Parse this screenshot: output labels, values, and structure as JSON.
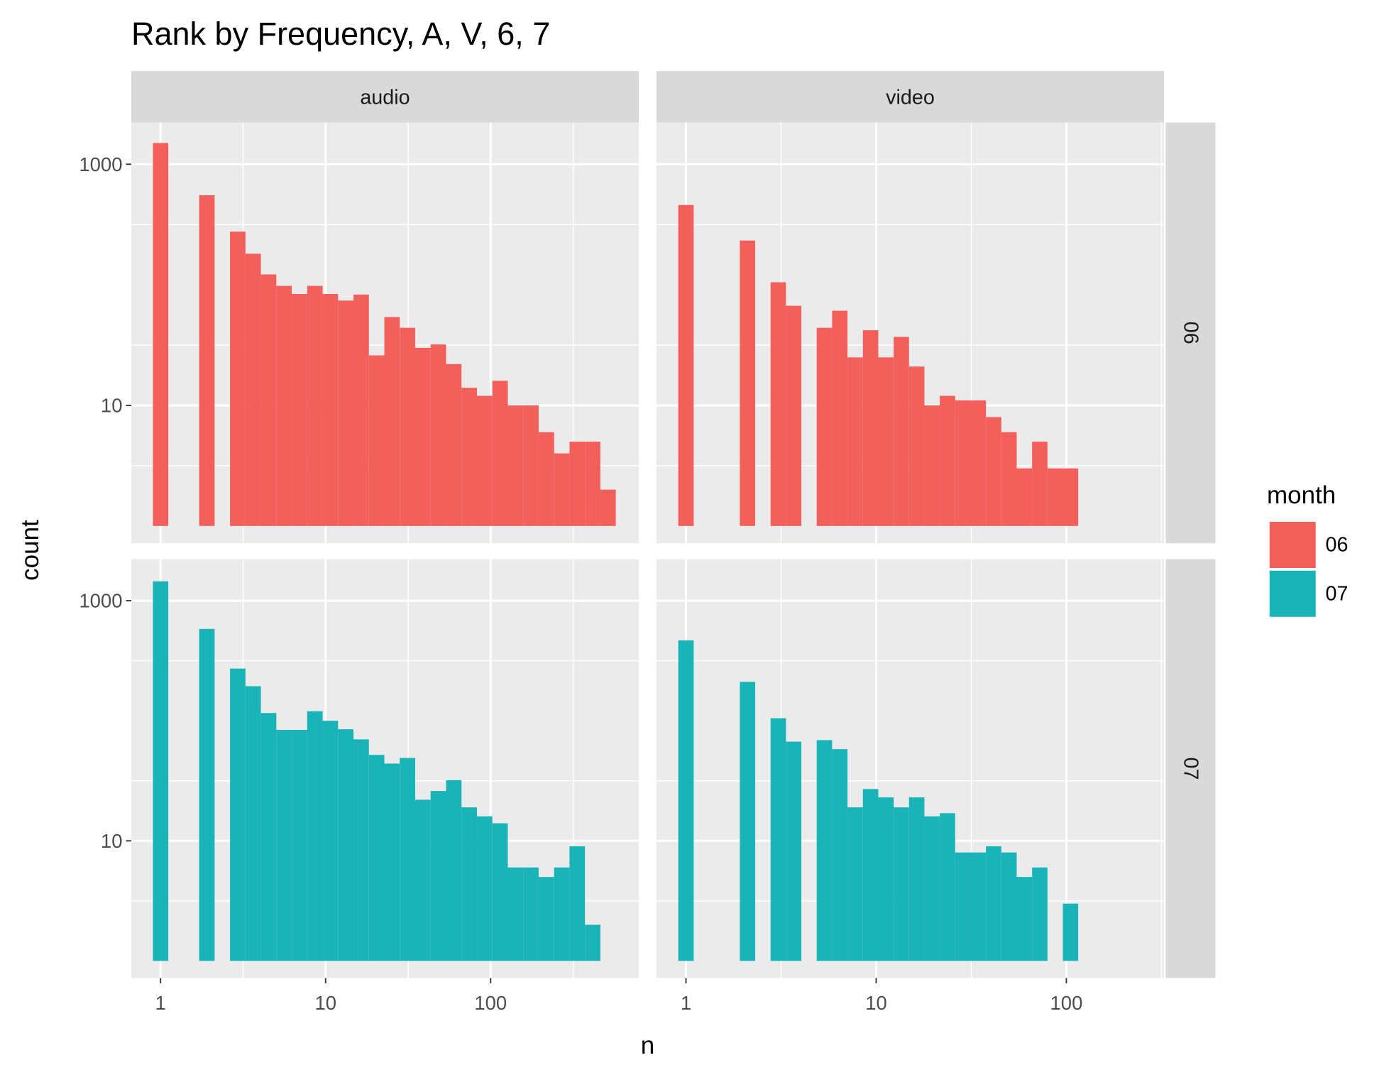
{
  "figure": {
    "title": "Rank by Frequency, A, V, 6, 7",
    "x_label": "n",
    "y_label": "count",
    "columns": [
      "audio",
      "video"
    ],
    "rows": [
      "06",
      "07"
    ],
    "legend": {
      "title": "month",
      "position": "right",
      "entries": [
        {
          "name": "06",
          "color": "#f35f5b"
        },
        {
          "name": "07",
          "color": "#19b3b8"
        }
      ]
    }
  },
  "chart_data": [
    {
      "type": "histogram",
      "x_scale": "log",
      "y_scale": "log",
      "grid": true,
      "color": "#f35f5b",
      "bins": [
        0.899,
        1.114,
        1.382,
        1.714,
        2.126,
        2.636,
        3.269,
        4.055,
        5.029,
        6.237,
        7.735,
        9.594,
        11.9,
        14.76,
        18.3,
        22.7,
        28.15,
        34.91,
        43.3,
        53.7,
        66.6,
        82.6,
        102.4,
        127.1,
        157.6,
        195.4,
        242.4,
        300.6,
        372.8,
        462.4,
        573.5
      ],
      "values": [
        1500,
        0,
        0,
        553,
        0,
        276,
        181,
        122,
        98,
        84,
        98,
        84,
        74,
        83,
        26,
        54,
        44,
        30,
        32,
        22,
        14,
        12,
        16,
        10,
        10,
        6,
        4,
        5,
        5,
        2
      ],
      "xlim": [
        0.665,
        790
      ],
      "ylim": [
        0.72,
        2220
      ],
      "xticks": [
        1,
        10,
        100
      ],
      "yticks": [
        10,
        1000
      ]
    },
    {
      "type": "histogram",
      "x_scale": "log",
      "y_scale": "log",
      "grid": true,
      "color": "#f35f5b",
      "bins": [
        0.911,
        1.098,
        1.322,
        1.593,
        1.919,
        2.312,
        2.785,
        3.355,
        4.042,
        4.869,
        5.866,
        7.067,
        8.513,
        10.26,
        12.36,
        14.88,
        17.93,
        21.6,
        26.02,
        31.35,
        37.77,
        45.5,
        54.81,
        66.03,
        79.55,
        95.83,
        115.4,
        139.1,
        167.5,
        201.8,
        243.1
      ],
      "values": [
        459,
        0,
        0,
        0,
        233,
        0,
        105,
        67,
        0,
        44,
        61,
        25,
        42,
        25,
        37,
        21,
        10,
        12,
        11,
        11,
        8,
        6,
        3,
        5,
        3,
        3,
        0,
        0,
        0,
        0
      ],
      "xlim": [
        0.7,
        326
      ],
      "ylim": [
        0.72,
        2220
      ],
      "xticks": [
        1,
        10,
        100
      ],
      "yticks": [
        10,
        1000
      ]
    },
    {
      "type": "histogram",
      "x_scale": "log",
      "y_scale": "log",
      "grid": true,
      "color": "#19b3b8",
      "bins": [
        0.899,
        1.114,
        1.382,
        1.714,
        2.126,
        2.636,
        3.269,
        4.055,
        5.029,
        6.237,
        7.735,
        9.594,
        11.9,
        14.76,
        18.3,
        22.7,
        28.15,
        34.91,
        43.3,
        53.7,
        66.6,
        82.6,
        102.4,
        127.1,
        157.6,
        195.4,
        242.4,
        300.6,
        372.8,
        462.4,
        573.5
      ],
      "values": [
        1450,
        0,
        0,
        582,
        0,
        272,
        194,
        116,
        84,
        84,
        120,
        100,
        85,
        70,
        52,
        44,
        49,
        22,
        26,
        32,
        19,
        16,
        14,
        6,
        6,
        5,
        6,
        9,
        2,
        0
      ],
      "xlim": [
        0.665,
        790
      ],
      "ylim": [
        0.72,
        2220
      ],
      "xticks": [
        1,
        10,
        100
      ],
      "yticks": [
        10,
        1000
      ]
    },
    {
      "type": "histogram",
      "x_scale": "log",
      "y_scale": "log",
      "grid": true,
      "color": "#19b3b8",
      "bins": [
        0.911,
        1.098,
        1.322,
        1.593,
        1.919,
        2.312,
        2.785,
        3.355,
        4.042,
        4.869,
        5.866,
        7.067,
        8.513,
        10.26,
        12.36,
        14.88,
        17.93,
        21.6,
        26.02,
        31.35,
        37.77,
        45.5,
        54.81,
        66.03,
        79.55,
        95.83,
        115.4,
        139.1,
        167.5,
        201.8,
        243.1
      ],
      "values": [
        467,
        0,
        0,
        0,
        211,
        0,
        105,
        67,
        0,
        69,
        58,
        19,
        27,
        23,
        19,
        23,
        16,
        17,
        8,
        8,
        9,
        8,
        5,
        6,
        0,
        3,
        0,
        0,
        0,
        0
      ],
      "xlim": [
        0.7,
        326
      ],
      "ylim": [
        0.72,
        2220
      ],
      "xticks": [
        1,
        10,
        100
      ],
      "yticks": [
        10,
        1000
      ]
    }
  ]
}
